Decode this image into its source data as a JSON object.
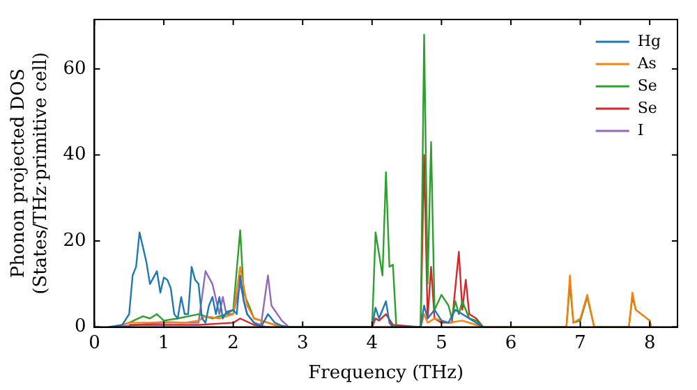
{
  "chart_data": {
    "type": "line",
    "xlabel": "Frequency (THz)",
    "ylabel": "Phonon projected DOS\n(States/THz·primitive cell)",
    "xlim": [
      0,
      8.4
    ],
    "ylim": [
      0,
      71.5
    ],
    "xticks": [
      0,
      1,
      2,
      3,
      4,
      5,
      6,
      7,
      8
    ],
    "yticks": [
      0,
      20,
      40,
      60
    ],
    "grid": false,
    "legend": "top right",
    "marker": "none",
    "line_style": "solid",
    "series": [
      {
        "name": "Hg",
        "color": "#1f77b4",
        "x": [
          0.2,
          0.4,
          0.5,
          0.55,
          0.6,
          0.65,
          0.75,
          0.8,
          0.9,
          0.95,
          1.0,
          1.05,
          1.1,
          1.15,
          1.2,
          1.25,
          1.3,
          1.35,
          1.4,
          1.45,
          1.5,
          1.55,
          1.6,
          1.65,
          1.7,
          1.75,
          1.8,
          1.85,
          1.9,
          2.0,
          2.05,
          2.1,
          2.15,
          2.2,
          2.3,
          2.4,
          2.5,
          2.6,
          2.7,
          2.8,
          4.0,
          4.05,
          4.1,
          4.2,
          4.25,
          4.3,
          4.7,
          4.75,
          4.8,
          4.9,
          5.0,
          5.1,
          5.2,
          5.3,
          5.4,
          5.5,
          5.6
        ],
        "values": [
          0,
          0.5,
          3,
          12,
          14,
          22,
          15,
          10,
          13,
          8,
          11.5,
          11,
          9,
          3,
          2,
          7,
          3,
          3,
          14,
          11,
          10,
          2,
          1,
          5,
          7,
          3,
          7,
          2,
          3.5,
          4,
          3,
          12,
          6,
          3,
          1,
          0,
          3,
          1,
          0.3,
          0,
          0,
          4.5,
          2,
          6,
          1,
          0,
          0,
          5,
          2,
          4,
          1.5,
          1,
          4,
          3,
          2,
          1,
          0
        ]
      },
      {
        "name": "As",
        "color": "#ff7f0e",
        "x": [
          0.3,
          0.5,
          0.8,
          1.0,
          1.3,
          1.5,
          1.6,
          1.8,
          2.0,
          2.1,
          2.2,
          2.3,
          2.5,
          2.7,
          4.7,
          4.75,
          4.8,
          4.9,
          5.1,
          5.3,
          5.5,
          5.6,
          6.8,
          6.85,
          6.9,
          7.0,
          7.1,
          7.2,
          7.7,
          7.75,
          7.8,
          8.0,
          8.02
        ],
        "values": [
          0,
          1,
          1,
          1.2,
          1,
          1.5,
          2.5,
          2,
          3,
          14,
          5,
          2,
          1,
          0,
          0,
          3,
          1,
          2,
          1,
          1.5,
          0.5,
          0,
          0,
          12,
          1,
          2,
          7.5,
          0,
          0,
          8,
          4,
          1.5,
          0
        ]
      },
      {
        "name": "Se",
        "color": "#2ca02c",
        "x": [
          0.3,
          0.5,
          0.7,
          0.8,
          0.9,
          1.0,
          1.2,
          1.5,
          1.7,
          1.9,
          2.0,
          2.1,
          2.15,
          2.3,
          2.5,
          2.7,
          4.0,
          4.05,
          4.15,
          4.2,
          4.25,
          4.3,
          4.35,
          4.7,
          4.75,
          4.8,
          4.85,
          4.9,
          5.0,
          5.1,
          5.15,
          5.2,
          5.25,
          5.3,
          5.4,
          5.5,
          5.6,
          6.8,
          6.85,
          6.9,
          7.0,
          7.1,
          7.2,
          7.7,
          7.75,
          7.8,
          8.0,
          8.02
        ],
        "values": [
          0,
          1,
          2.5,
          2,
          3,
          1.5,
          2,
          3,
          2,
          3,
          4,
          22.5,
          8,
          2,
          1,
          0,
          0,
          22,
          12,
          36,
          14,
          14.5,
          0,
          0,
          68,
          10,
          43,
          4,
          7.5,
          5,
          2,
          6,
          3,
          6,
          2,
          1.5,
          0,
          0,
          10,
          1,
          1.5,
          7,
          0,
          0,
          7,
          4,
          1.5,
          0
        ]
      },
      {
        "name": "Se",
        "color": "#d62728",
        "x": [
          0.5,
          1.0,
          1.5,
          2.0,
          2.1,
          2.3,
          2.5,
          4.0,
          4.05,
          4.1,
          4.2,
          4.3,
          4.7,
          4.75,
          4.8,
          4.85,
          4.9,
          5.0,
          5.15,
          5.25,
          5.3,
          5.35,
          5.4,
          5.5,
          5.6
        ],
        "values": [
          0.5,
          0.5,
          0.5,
          1,
          2,
          0.5,
          0,
          0,
          2,
          1.5,
          3,
          0.5,
          0,
          40,
          2,
          14,
          2,
          1,
          1,
          17.5,
          4,
          11,
          3,
          2,
          0
        ]
      },
      {
        "name": "I",
        "color": "#9467bd",
        "x": [
          0.3,
          0.6,
          1.0,
          1.3,
          1.5,
          1.6,
          1.7,
          1.8,
          1.85,
          1.9,
          2.0,
          2.1,
          2.2,
          2.3,
          2.4,
          2.5,
          2.55,
          2.7,
          2.8
        ],
        "values": [
          0,
          0.5,
          1,
          1,
          1,
          13,
          10,
          3,
          7,
          3,
          3,
          10,
          3,
          1,
          0.5,
          12,
          5,
          1.5,
          0
        ]
      }
    ]
  }
}
